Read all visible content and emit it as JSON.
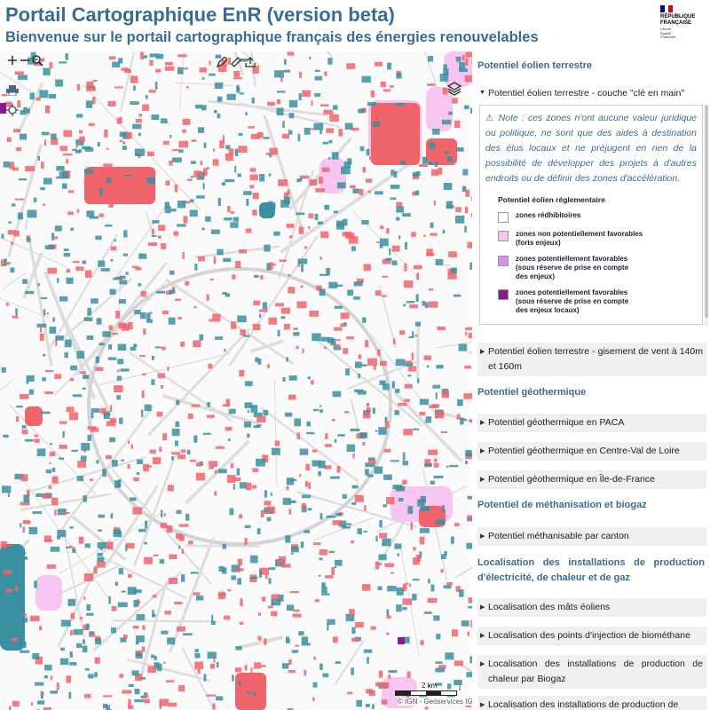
{
  "header": {
    "title": "Portail Cartographique EnR (version beta)",
    "subtitle": "Bienvenue sur le portail cartographique français des énergies renouvelables",
    "logo_text": "RÉPUBLIQUE\nFRANÇAISE",
    "logo_motto": "Liberté\nÉgalité\nFraternité"
  },
  "map": {
    "scale_label": "2 km",
    "info_glyph": "i",
    "attribution": "© IGN - Geoservices IGN",
    "colors": {
      "red": "#f0646c",
      "teal": "#3a8fa0",
      "pink": "#f7c6f0",
      "purple": "#8b1a8b",
      "road": "#dddddd"
    }
  },
  "panel": {
    "sections": [
      {
        "label": "Potentiel éolien terrestre"
      },
      {
        "label": "Potentiel géothermique"
      },
      {
        "label": "Potentiel de méthanisation et biogaz"
      },
      {
        "label": "Localisation des installations de production d'électricité, de chaleur et de gaz"
      }
    ],
    "open_item": "Potentiel éolien terrestre - couche \"clé en main\"",
    "note": "Note : ces zones n'ont aucune valeur juridique ou politique, ne sont que des aides à destination des élus locaux et ne préjugent en rien de la possibilité de développer des projets à d'autres endroits ou de définir des zones d'accélération.",
    "legend": {
      "title": "Potentiel éolien réglementaire",
      "entries": [
        {
          "label": "zones rédhibitoires",
          "color": "#ffffff"
        },
        {
          "label": "zones non potentiellement favorables\n(forts enjeux)",
          "color": "#f7c6f0"
        },
        {
          "label": "zones potentiellement favorables\n(sous réserve de prise en compte\ndes enjeux)",
          "color": "#d88cf0"
        },
        {
          "label": "zones potentiellement favorables\n(sous réserve de prise en compte\ndes enjeux locaux)",
          "color": "#8b1a8b"
        }
      ]
    },
    "items": [
      "Potentiel éolien terrestre - gisement de vent à 140m et 160m",
      "Potentiel géothermique en PACA",
      "Potentiel géothermique en Centre-Val de Loire",
      "Potentiel géothermique en Île-de-France",
      "Potentiel méthanisable par canton",
      "Localisation des mâts éoliens",
      "Localisation des points d'injection de biométhane",
      "Localisation des installations de production de chaleur par Biogaz",
      "Localisation des installations de production de"
    ]
  }
}
